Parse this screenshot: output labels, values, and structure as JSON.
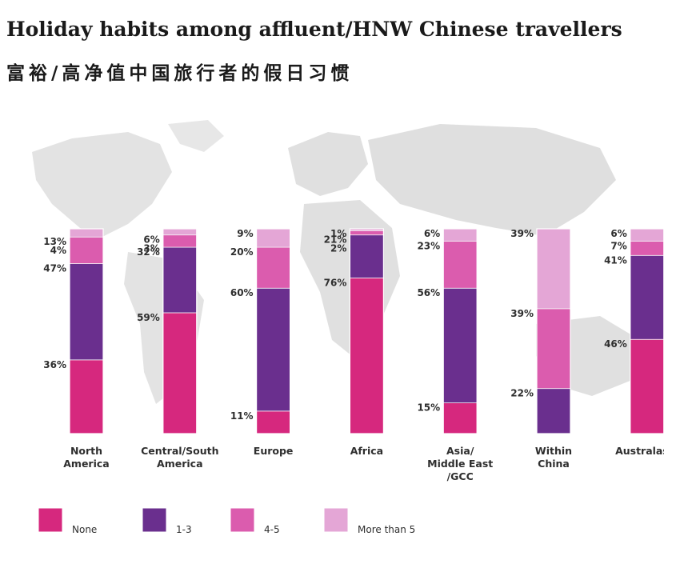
{
  "title": "Holiday habits among affluent/HNW Chinese travellers",
  "subtitle": "富裕/高净值中国旅行者的假日习惯",
  "colors": {
    "None": "#d6287e",
    "1-3": "#6a2f8e",
    "4-5": "#db5cae",
    "More than 5": "#e4a6d6",
    "background_map": "#dcdcdc"
  },
  "chart_data": {
    "type": "bar",
    "stacked": true,
    "categories": [
      [
        "North",
        "America"
      ],
      [
        "Central/South",
        "America"
      ],
      [
        "Europe"
      ],
      [
        "Africa"
      ],
      [
        "Asia/",
        "Middle East",
        "/GCC"
      ],
      [
        "Within",
        "China"
      ],
      [
        "Australasia"
      ]
    ],
    "series": [
      {
        "name": "None",
        "values": [
          36,
          59,
          11,
          76,
          15,
          0,
          46
        ]
      },
      {
        "name": "1-3",
        "values": [
          47,
          32,
          60,
          21,
          56,
          22,
          41
        ]
      },
      {
        "name": "4-5",
        "values": [
          13,
          6,
          20,
          2,
          23,
          39,
          7
        ]
      },
      {
        "name": "More than 5",
        "values": [
          4,
          3,
          9,
          1,
          6,
          39,
          6
        ]
      }
    ],
    "value_labels": [
      [
        "36%",
        "47%",
        "13%",
        "4%"
      ],
      [
        "59%",
        "32%",
        "6%",
        "3%"
      ],
      [
        "11%",
        "60%",
        "20%",
        "9%"
      ],
      [
        "76%",
        "21%",
        "2%",
        "1%"
      ],
      [
        "15%",
        "56%",
        "23%",
        "6%"
      ],
      [
        "",
        "22%",
        "39%",
        "39%"
      ],
      [
        "46%",
        "41%",
        "7%",
        "6%"
      ]
    ],
    "ylim": [
      0,
      100
    ],
    "legend": {
      "position": "bottom",
      "labels": [
        "None",
        "1-3",
        "4-5",
        "More than 5"
      ]
    },
    "grid": false,
    "background": "world map"
  }
}
